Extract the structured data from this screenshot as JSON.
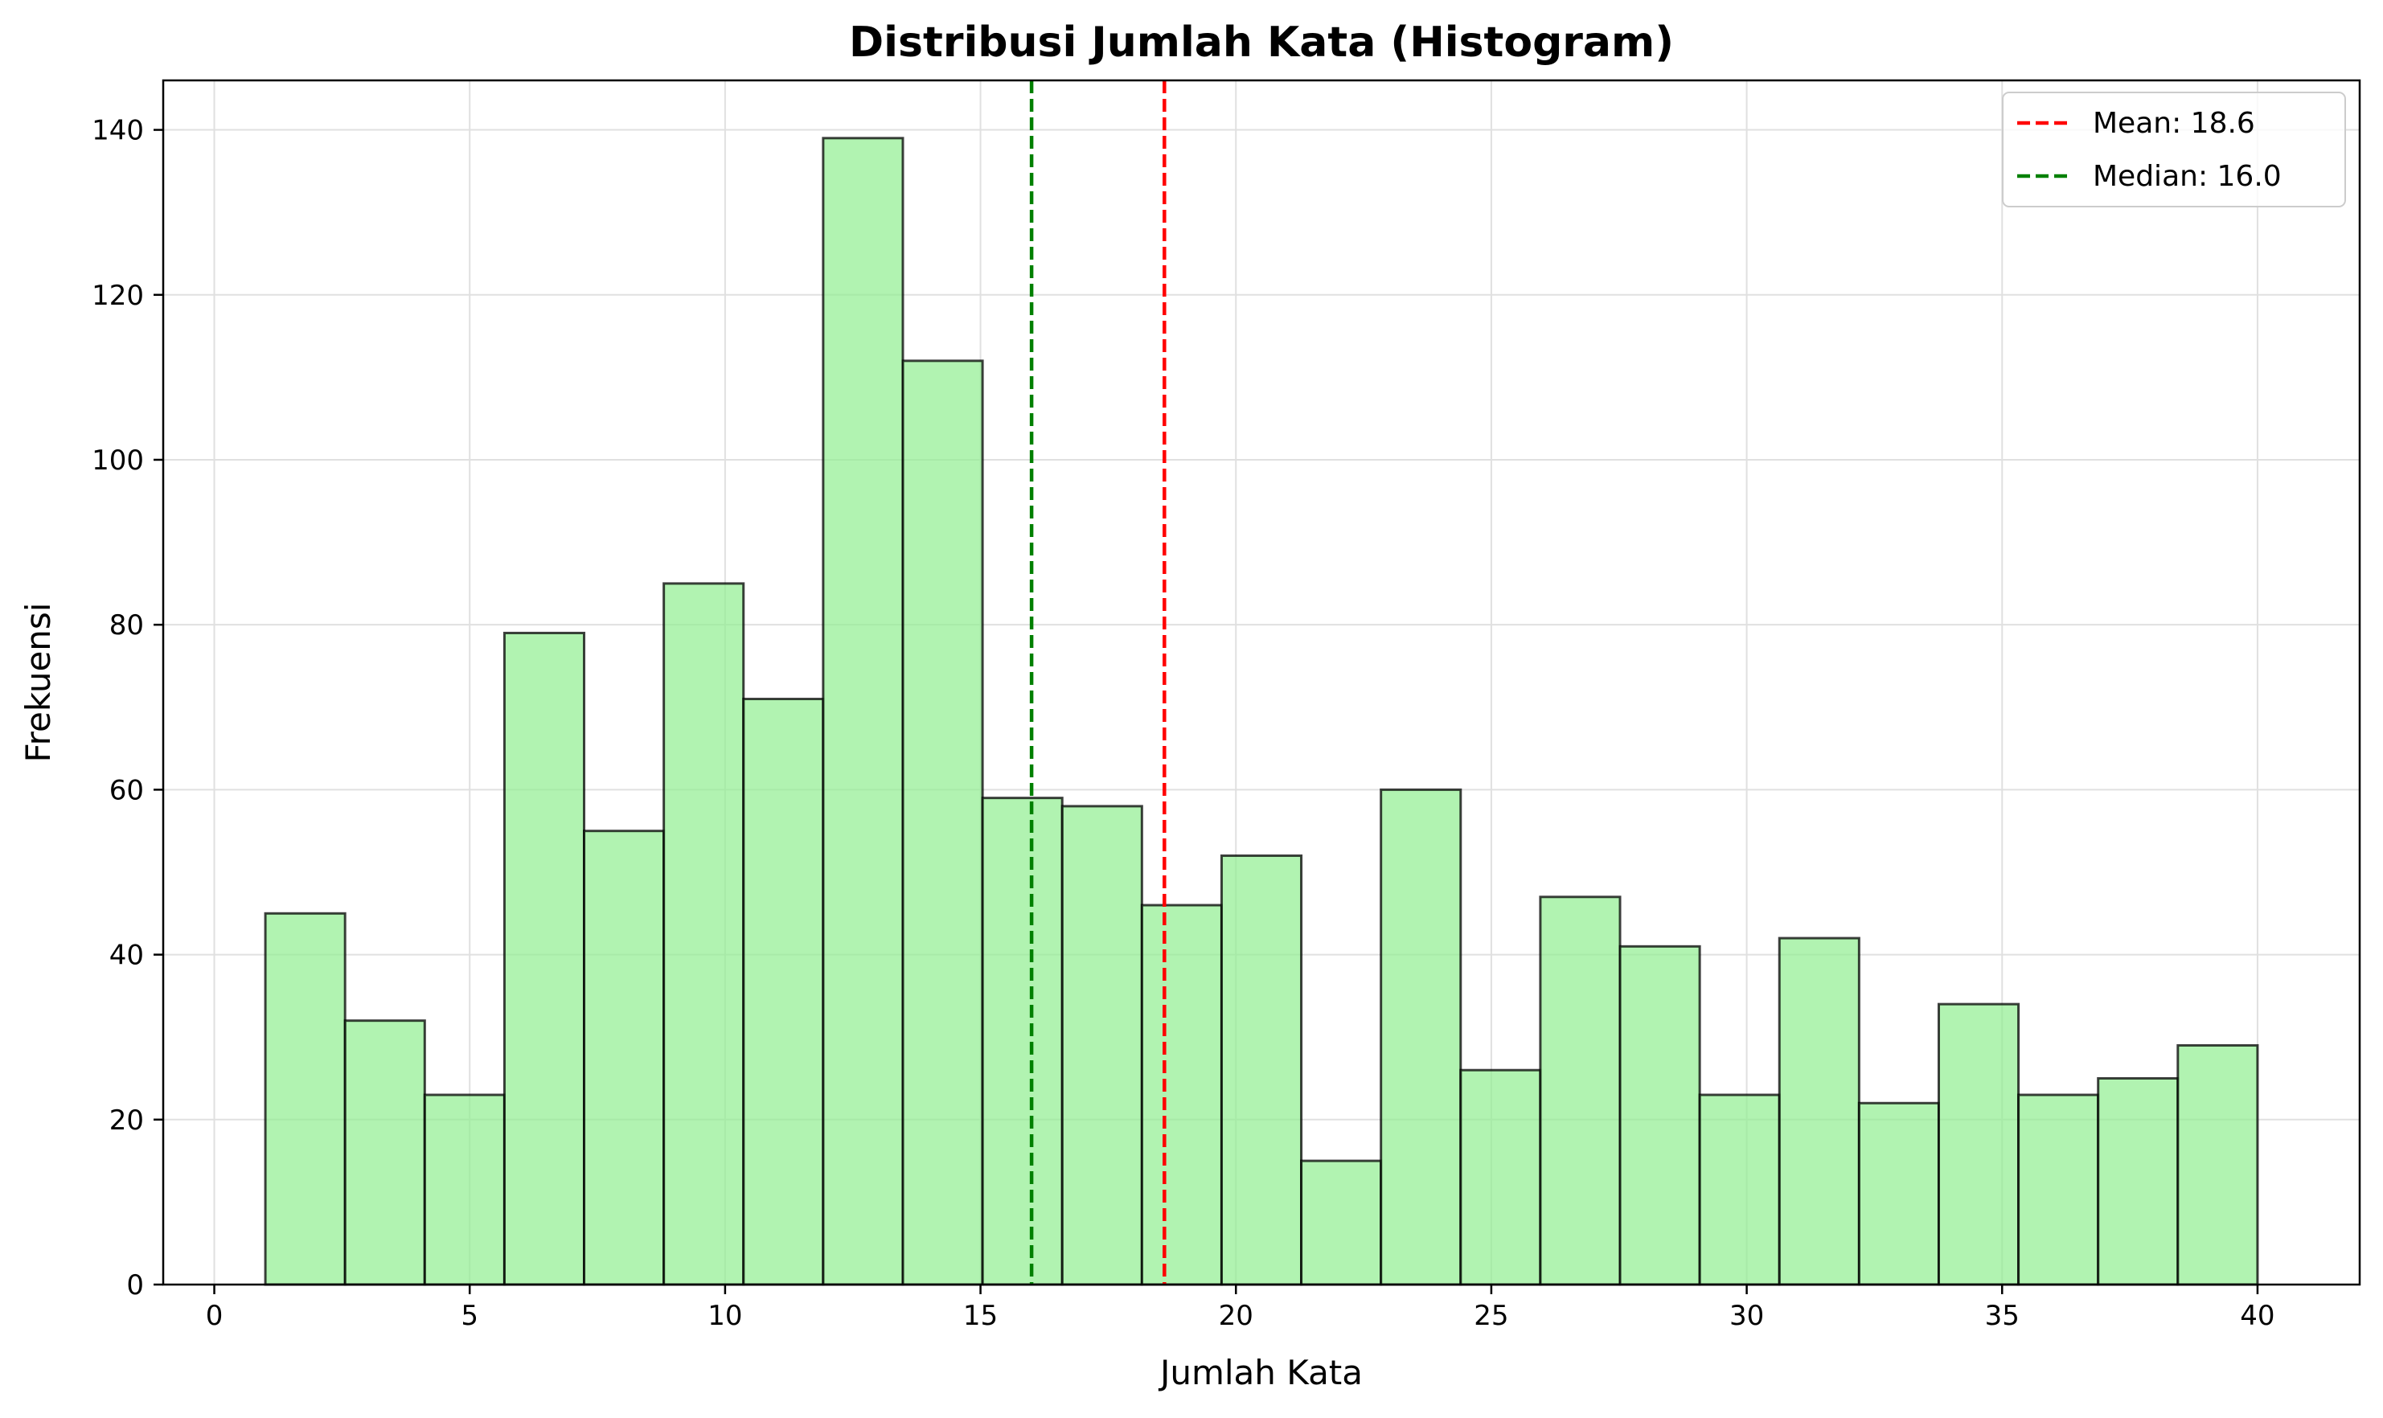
{
  "chart_data": {
    "type": "bar",
    "title": "Distribusi Jumlah Kata (Histogram)",
    "xlabel": "Jumlah Kata",
    "ylabel": "Frekuensi",
    "xlim": [
      -1,
      42
    ],
    "ylim": [
      0,
      146
    ],
    "xticks": [
      0,
      5,
      10,
      15,
      20,
      25,
      30,
      35,
      40
    ],
    "yticks": [
      0,
      20,
      40,
      60,
      80,
      100,
      120,
      140
    ],
    "grid": true,
    "legend_position": "top-right",
    "bin_edges": [
      1,
      2.56,
      4.12,
      5.68,
      7.24,
      8.8,
      10.36,
      11.92,
      13.48,
      15.04,
      16.6,
      18.16,
      19.72,
      21.28,
      22.84,
      24.4,
      25.96,
      27.52,
      29.08,
      30.64,
      32.2,
      33.76,
      35.32,
      36.88,
      38.44,
      40
    ],
    "values": [
      45,
      32,
      23,
      79,
      55,
      85,
      71,
      139,
      112,
      59,
      58,
      46,
      52,
      15,
      60,
      26,
      47,
      41,
      23,
      42,
      22,
      34,
      23,
      25,
      29
    ],
    "bar_color": "#90ee90",
    "bar_edge_color": "#000000",
    "reference_lines": [
      {
        "label": "Mean: 18.6",
        "value": 18.6,
        "color": "#ff0000"
      },
      {
        "label": "Median: 16.0",
        "value": 16.0,
        "color": "#008000"
      }
    ]
  }
}
